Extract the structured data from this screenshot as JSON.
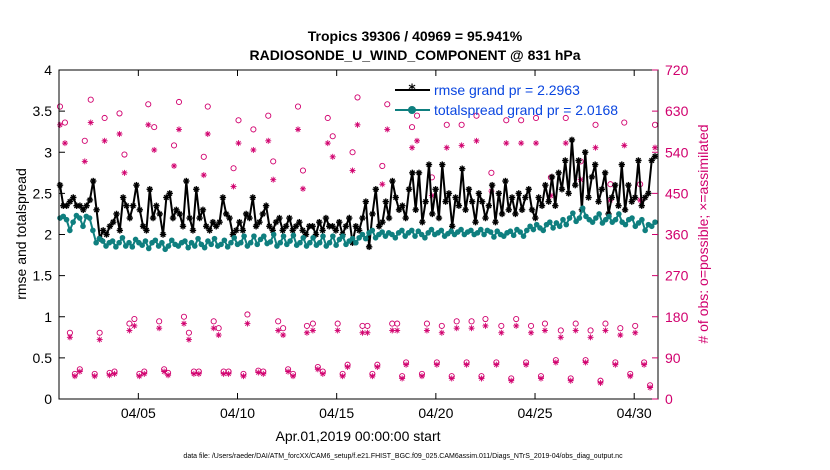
{
  "chart_data": {
    "type": "line",
    "title_line1": "Tropics 39306 / 40969 = 95.941%",
    "title_line2": "RADIOSONDE_U_WIND_COMPONENT @ 831 hPa",
    "xlabel": "Apr.01,2019 00:00:00 start",
    "ylabel_left": "rmse and totalspread",
    "ylabel_right": "# of obs: o=possible; ×=assimilated",
    "footer": "data file: /Users/raeder/DAI/ATM_forcXX/CAM6_setup/f.e21.FHIST_BGC.f09_025.CAM6assim.011/Diags_NTrS_2019-04/obs_diag_output.nc",
    "xlim": [
      1,
      31.2
    ],
    "ylim_left": [
      0,
      4
    ],
    "ylim_right": [
      0,
      720
    ],
    "x_ticks": [
      5,
      10,
      15,
      20,
      25,
      30
    ],
    "x_tick_labels": [
      "04/05",
      "04/10",
      "04/15",
      "04/20",
      "04/25",
      "04/30"
    ],
    "y_left_ticks": [
      0,
      0.5,
      1,
      1.5,
      2,
      2.5,
      3,
      3.5,
      4
    ],
    "y_left_tick_labels": [
      "0",
      "0.5",
      "1",
      "1.5",
      "2",
      "2.5",
      "3",
      "3.5",
      "4"
    ],
    "y_right_ticks": [
      0,
      90,
      180,
      270,
      360,
      450,
      540,
      630,
      720
    ],
    "y_right_tick_labels": [
      "0",
      "90",
      "180",
      "270",
      "360",
      "450",
      "540",
      "630",
      "720"
    ],
    "series": [
      {
        "name": "rmse grand pr = 2.2963",
        "color": "#000000",
        "axis": "left",
        "marker": "asterisk",
        "values": [
          2.6,
          2.35,
          2.35,
          2.4,
          2.45,
          2.35,
          2.35,
          2.3,
          2.35,
          2.42,
          2.65,
          2.3,
          1.95,
          2.05,
          2.0,
          2.1,
          2.15,
          2.25,
          2.05,
          2.45,
          2.35,
          2.2,
          2.35,
          2.6,
          2.3,
          2.1,
          2.05,
          2.55,
          2.2,
          2.35,
          2.25,
          2.0,
          2.45,
          2.5,
          2.2,
          2.3,
          2.25,
          2.1,
          2.65,
          2.2,
          2.05,
          2.55,
          2.2,
          2.3,
          2.1,
          2.05,
          2.15,
          2.1,
          2.15,
          2.45,
          2.25,
          2.2,
          2.0,
          2.05,
          2.15,
          2.05,
          2.25,
          2.2,
          2.45,
          2.1,
          2.15,
          2.25,
          2.35,
          2.1,
          2.05,
          2.15,
          2.2,
          2.05,
          2.1,
          2.2,
          2.05,
          2.1,
          2.15,
          2.05,
          2.0,
          2.1,
          2.1,
          2.0,
          2.15,
          2.05,
          2.2,
          2.1,
          2.1,
          2.05,
          2.15,
          2.0,
          2.1,
          2.2,
          1.9,
          2.1,
          2.05,
          2.2,
          2.4,
          1.85,
          2.25,
          2.55,
          2.1,
          2.15,
          2.4,
          2.2,
          2.65,
          2.45,
          2.3,
          2.35,
          2.2,
          2.55,
          2.75,
          2.3,
          2.75,
          2.15,
          2.4,
          2.85,
          2.25,
          2.55,
          2.2,
          2.85,
          2.4,
          2.5,
          2.1,
          2.45,
          2.35,
          2.8,
          2.3,
          2.55,
          2.4,
          2.15,
          2.5,
          2.4,
          2.2,
          2.35,
          2.6,
          2.15,
          2.5,
          2.25,
          2.65,
          2.3,
          2.45,
          2.25,
          2.5,
          2.3,
          2.45,
          2.55,
          2.3,
          2.2,
          2.45,
          2.35,
          2.6,
          2.4,
          2.7,
          2.35,
          2.75,
          2.55,
          2.9,
          2.5,
          3.15,
          2.6,
          2.9,
          2.3,
          3.0,
          2.45,
          2.7,
          2.85,
          2.4,
          2.55,
          2.75,
          2.25,
          2.45,
          2.6,
          2.35,
          2.85,
          2.3,
          2.6,
          2.4,
          2.45,
          2.9,
          2.35,
          2.45,
          2.5,
          2.9,
          2.95
        ]
      },
      {
        "name": "totalspread grand pr = 2.0168",
        "color": "#0f7f7f",
        "axis": "left",
        "marker": "dot",
        "values": [
          2.2,
          2.22,
          2.18,
          2.05,
          2.15,
          2.23,
          2.2,
          2.1,
          2.22,
          2.2,
          2.05,
          1.9,
          1.95,
          1.92,
          1.86,
          1.9,
          1.92,
          1.85,
          1.9,
          1.96,
          1.86,
          1.9,
          1.85,
          1.94,
          1.9,
          1.87,
          1.92,
          1.83,
          1.9,
          1.93,
          1.86,
          1.9,
          1.82,
          1.86,
          1.93,
          1.88,
          1.86,
          1.9,
          1.92,
          1.84,
          1.9,
          1.86,
          1.95,
          1.88,
          1.84,
          1.92,
          1.88,
          1.95,
          1.86,
          1.88,
          1.93,
          1.85,
          1.9,
          1.96,
          1.88,
          1.9,
          1.98,
          1.86,
          1.9,
          1.98,
          1.88,
          1.94,
          1.98,
          1.89,
          1.91,
          2.0,
          1.86,
          1.9,
          1.98,
          1.88,
          1.92,
          1.99,
          1.87,
          1.9,
          1.96,
          1.86,
          1.9,
          1.96,
          1.87,
          1.9,
          1.98,
          1.86,
          1.9,
          1.98,
          1.87,
          1.94,
          1.98,
          1.88,
          1.92,
          1.95,
          1.9,
          1.96,
          2.0,
          1.95,
          2.02,
          2.05,
          1.96,
          2.0,
          2.03,
          1.98,
          2.02,
          2.0,
          1.96,
          2.02,
          2.05,
          1.98,
          2.02,
          2.05,
          1.98,
          2.04,
          2.0,
          1.96,
          2.02,
          2.06,
          2.0,
          2.02,
          2.05,
          1.98,
          2.01,
          2.04,
          2.0,
          2.03,
          2.06,
          2.0,
          2.03,
          2.05,
          2.0,
          2.02,
          2.06,
          2.0,
          2.05,
          2.03,
          1.97,
          2.04,
          2.0,
          1.98,
          2.02,
          2.04,
          1.99,
          2.06,
          2.03,
          1.98,
          2.05,
          2.1,
          2.06,
          2.12,
          2.08,
          2.05,
          2.12,
          2.15,
          2.08,
          2.14,
          2.1,
          2.18,
          2.12,
          2.2,
          2.26,
          2.16,
          2.2,
          2.32,
          2.22,
          2.18,
          2.15,
          2.2,
          2.25,
          2.14,
          2.18,
          2.22,
          2.15,
          2.18,
          2.25,
          2.15,
          2.12,
          2.18,
          2.2,
          2.1,
          2.14,
          2.18,
          2.05,
          2.12,
          2.1,
          2.15
        ]
      },
      {
        "name": "possible observations",
        "color": "#d1006e",
        "axis": "right",
        "marker": "circle",
        "x": [
          1.05,
          1.55,
          2.05,
          2.6,
          3.05,
          3.55,
          4.05,
          4.55,
          5.05,
          5.5,
          6.05,
          6.5,
          7.05,
          7.55,
          8.05,
          8.5,
          9.05,
          9.55,
          10.05,
          10.5,
          11.05,
          11.55,
          12.05,
          12.55,
          13.05,
          13.5,
          14.05,
          14.55,
          15.05,
          15.55,
          16.05,
          16.55,
          17.05,
          17.55,
          18.05,
          18.5,
          19.05,
          19.55,
          20.05,
          20.55,
          21.05,
          21.55,
          22.05,
          22.5,
          23.05,
          23.55,
          24.05,
          24.55,
          25.05,
          25.5,
          26.05,
          26.55,
          27.05,
          27.55,
          28.05,
          28.55,
          29.05,
          29.5,
          30.05,
          30.5,
          31.05
        ],
        "values": [
          640,
          145,
          65,
          655,
          145,
          57,
          625,
          165,
          55,
          645,
          170,
          57,
          650,
          145,
          60,
          640,
          155,
          60,
          610,
          185,
          62,
          620,
          170,
          65,
          640,
          160,
          70,
          615,
          165,
          75,
          660,
          160,
          75,
          645,
          165,
          80,
          620,
          165,
          80,
          600,
          170,
          80,
          620,
          175,
          80,
          610,
          175,
          80,
          615,
          165,
          85,
          615,
          165,
          85,
          600,
          165,
          80,
          605,
          160,
          80,
          600
        ],
        "x2": [
          1.3,
          1.8,
          2.3,
          2.8,
          3.3,
          3.8,
          4.3,
          4.8,
          5.3,
          5.8,
          6.3,
          6.8,
          7.3,
          7.8,
          8.3,
          8.8,
          9.3,
          9.8,
          10.3,
          10.8,
          11.3,
          11.8,
          12.3,
          12.8,
          13.3,
          13.8,
          14.3,
          14.8,
          15.3,
          15.8,
          16.3,
          16.8,
          17.3,
          17.8,
          18.3,
          18.8,
          19.3,
          19.8,
          20.3,
          20.8,
          21.3,
          21.8,
          22.3,
          22.8,
          23.3,
          23.8,
          24.3,
          24.8,
          25.3,
          25.8,
          26.3,
          26.8,
          27.3,
          27.8,
          28.3,
          28.8,
          29.3,
          29.8,
          30.3,
          30.8
        ],
        "values2": [
          605,
          55,
          565,
          55,
          615,
          60,
          535,
          175,
          60,
          595,
          65,
          555,
          180,
          60,
          530,
          170,
          60,
          505,
          55,
          590,
          60,
          520,
          155,
          55,
          500,
          165,
          60,
          575,
          55,
          540,
          160,
          55,
          510,
          165,
          50,
          595,
          55,
          485,
          160,
          50,
          600,
          170,
          50,
          495,
          160,
          45,
          610,
          160,
          50,
          485,
          150,
          45,
          520,
          150,
          40,
          470,
          155,
          55,
          470,
          30
        ]
      },
      {
        "name": "assimilated observations",
        "color": "#d1006e",
        "axis": "right",
        "marker": "asterisk",
        "x": [
          1.05,
          1.55,
          2.05,
          2.6,
          3.05,
          3.55,
          4.05,
          4.55,
          5.05,
          5.5,
          6.05,
          6.5,
          7.05,
          7.55,
          8.05,
          8.5,
          9.05,
          9.55,
          10.05,
          10.5,
          11.05,
          11.55,
          12.05,
          12.55,
          13.05,
          13.5,
          14.05,
          14.55,
          15.05,
          15.55,
          16.05,
          16.55,
          17.05,
          17.55,
          18.05,
          18.5,
          19.05,
          19.55,
          20.05,
          20.55,
          21.05,
          21.55,
          22.05,
          22.5,
          23.05,
          23.55,
          24.05,
          24.55,
          25.05,
          25.5,
          26.05,
          26.55,
          27.05,
          27.55,
          28.05,
          28.55,
          29.05,
          29.5,
          30.05,
          30.5,
          31.05
        ],
        "values": [
          600,
          135,
          60,
          605,
          130,
          52,
          580,
          150,
          50,
          600,
          155,
          52,
          590,
          130,
          55,
          580,
          140,
          55,
          560,
          165,
          58,
          565,
          150,
          60,
          590,
          145,
          65,
          560,
          150,
          70,
          600,
          145,
          70,
          590,
          150,
          75,
          565,
          150,
          75,
          550,
          155,
          75,
          565,
          160,
          75,
          560,
          160,
          75,
          560,
          150,
          80,
          560,
          150,
          80,
          550,
          150,
          75,
          555,
          145,
          75,
          550
        ],
        "x2": [
          1.3,
          1.8,
          2.3,
          2.8,
          3.3,
          3.8,
          4.3,
          4.8,
          5.3,
          5.8,
          6.3,
          6.8,
          7.3,
          7.8,
          8.3,
          8.8,
          9.3,
          9.8,
          10.3,
          10.8,
          11.3,
          11.8,
          12.3,
          12.8,
          13.3,
          13.8,
          14.3,
          14.8,
          15.3,
          15.8,
          16.3,
          16.8,
          17.3,
          17.8,
          18.3,
          18.8,
          19.3,
          19.8,
          20.3,
          20.8,
          21.3,
          21.8,
          22.3,
          22.8,
          23.3,
          23.8,
          24.3,
          24.8,
          25.3,
          25.8,
          26.3,
          26.8,
          27.3,
          27.8,
          28.3,
          28.8,
          29.3,
          29.8,
          30.3,
          30.8
        ],
        "values2": [
          560,
          50,
          520,
          50,
          565,
          55,
          495,
          160,
          55,
          545,
          60,
          510,
          165,
          55,
          490,
          155,
          55,
          465,
          50,
          545,
          55,
          480,
          140,
          50,
          460,
          150,
          55,
          530,
          50,
          500,
          145,
          50,
          470,
          150,
          45,
          550,
          50,
          445,
          145,
          45,
          555,
          155,
          45,
          455,
          145,
          40,
          560,
          145,
          45,
          445,
          135,
          40,
          480,
          135,
          35,
          435,
          140,
          50,
          435,
          25
        ]
      }
    ]
  }
}
